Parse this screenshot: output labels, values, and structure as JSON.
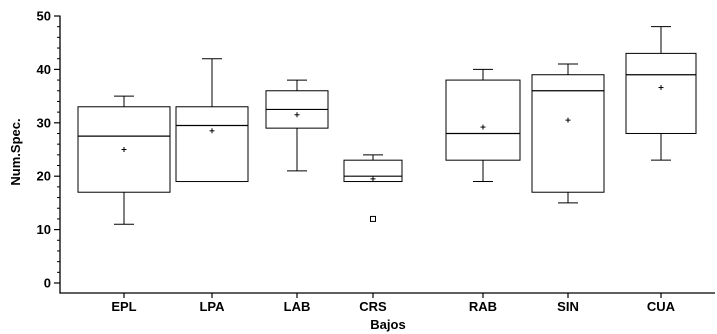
{
  "chart_data": {
    "type": "boxplot",
    "title": "",
    "xlabel": "Bajos",
    "ylabel": "Num.Spec.",
    "ylim": [
      -2,
      52
    ],
    "y_ticks": [
      0,
      10,
      20,
      30,
      40,
      50
    ],
    "y_tick_labels": [
      "0",
      "10",
      "20",
      "30",
      "40",
      "50"
    ],
    "y_minor_step": 2,
    "grid": false,
    "legend": "none",
    "colors": {
      "box_fill": "#ffffff",
      "stroke": "#000000"
    },
    "categories": [
      "EPL",
      "LPA",
      "LAB",
      "CRS",
      "RAB",
      "SIN",
      "CUA"
    ],
    "boxes": [
      {
        "category": "EPL",
        "whisker_low": 11,
        "q1": 17,
        "median": 27.5,
        "q3": 33,
        "whisker_high": 35,
        "mean": 25,
        "outliers": []
      },
      {
        "category": "LPA",
        "whisker_low": 19,
        "q1": 19,
        "median": 29.5,
        "q3": 33,
        "whisker_high": 42,
        "mean": 28.5,
        "outliers": []
      },
      {
        "category": "LAB",
        "whisker_low": 21,
        "q1": 29,
        "median": 32.5,
        "q3": 36,
        "whisker_high": 38,
        "mean": 31.5,
        "outliers": []
      },
      {
        "category": "CRS",
        "whisker_low": 19,
        "q1": 19,
        "median": 20,
        "q3": 23,
        "whisker_high": 24,
        "mean": 19.5,
        "outliers": [
          12
        ]
      },
      {
        "category": "RAB",
        "whisker_low": 19,
        "q1": 23,
        "median": 28,
        "q3": 38,
        "whisker_high": 40,
        "mean": 29.2,
        "outliers": []
      },
      {
        "category": "SIN",
        "whisker_low": 15,
        "q1": 17,
        "median": 36,
        "q3": 39,
        "whisker_high": 41,
        "mean": 30.5,
        "outliers": []
      },
      {
        "category": "CUA",
        "whisker_low": 23,
        "q1": 28,
        "median": 39,
        "q3": 43,
        "whisker_high": 48,
        "mean": 36.6,
        "outliers": []
      }
    ]
  }
}
